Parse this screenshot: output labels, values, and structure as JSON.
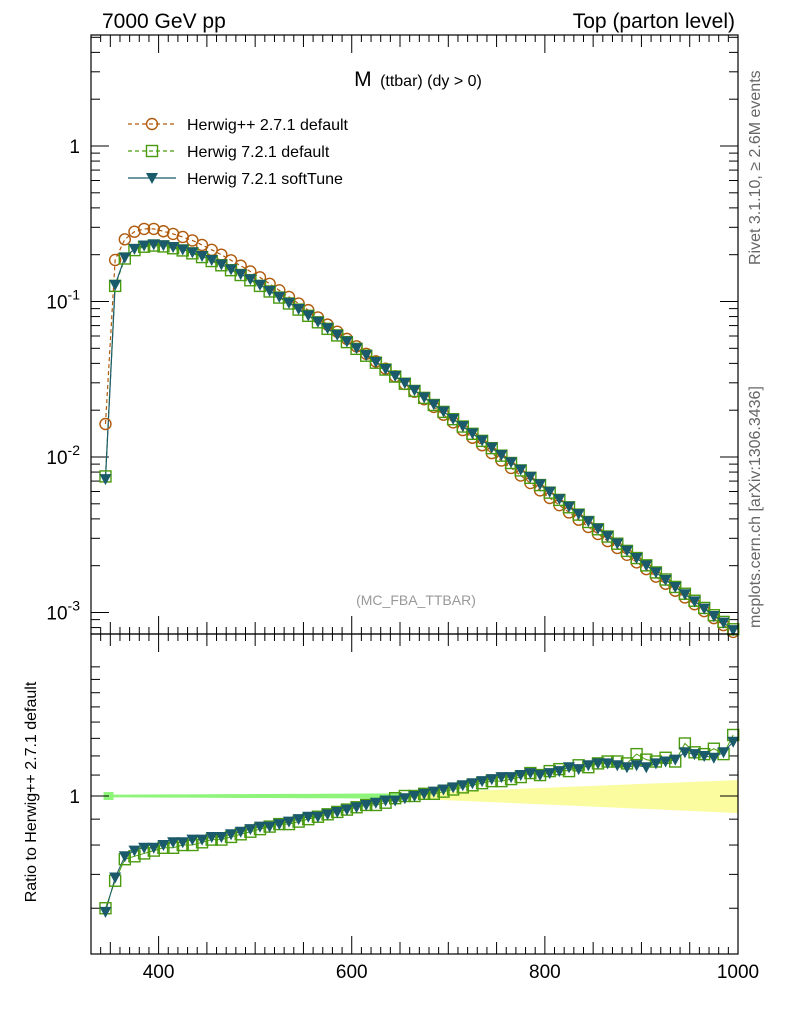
{
  "header": {
    "left": "7000 GeV pp",
    "right": "Top (parton level)"
  },
  "side_texts": {
    "rivet": "Rivet 3.1.10, ≥ 2.6M events",
    "mcplots": "mcplots.cern.ch [arXiv:1306.3436]"
  },
  "plot_title": {
    "main": "M",
    "sub": "(ttbar) (dy > 0)"
  },
  "analysis_label": "(MC_FBA_TTBAR)",
  "ratio_ylabel": "Ratio to Herwig++ 2.7.1 default",
  "colors": {
    "herwigpp": "#b05a0c",
    "herwig721": "#4a9a0e",
    "softtune": "#1a5a6a",
    "band_green": "#8ef57a",
    "band_yellow": "#fbfca0"
  },
  "chart_data": [
    {
      "type": "line",
      "title": "M (ttbar) (dy > 0)",
      "xlim": [
        330,
        1000
      ],
      "ylim": [
        0.0007,
        5
      ],
      "yscale": "log",
      "yticks": [
        "10^-3",
        "10^-2",
        "10^-1",
        "1"
      ],
      "legend_position": "top-left",
      "x": [
        345,
        355,
        365,
        375,
        385,
        395,
        405,
        415,
        425,
        435,
        445,
        455,
        465,
        475,
        485,
        495,
        505,
        515,
        525,
        535,
        545,
        555,
        565,
        575,
        585,
        595,
        605,
        615,
        625,
        635,
        645,
        655,
        665,
        675,
        685,
        695,
        705,
        715,
        725,
        735,
        745,
        755,
        765,
        775,
        785,
        795,
        805,
        815,
        825,
        835,
        845,
        855,
        865,
        875,
        885,
        895,
        905,
        915,
        925,
        935,
        945,
        955,
        965,
        975,
        985,
        995
      ],
      "series": [
        {
          "name": "Herwig++ 2.7.1 default",
          "marker": "open-circle",
          "line": "dashed",
          "color": "#b05a0c",
          "values": [
            0.0163,
            0.185,
            0.251,
            0.281,
            0.293,
            0.293,
            0.283,
            0.272,
            0.26,
            0.247,
            0.231,
            0.215,
            0.2,
            0.184,
            0.17,
            0.156,
            0.143,
            0.13,
            0.118,
            0.107,
            0.097,
            0.088,
            0.079,
            0.071,
            0.064,
            0.0575,
            0.0515,
            0.0461,
            0.0412,
            0.037,
            0.033,
            0.0295,
            0.0263,
            0.0235,
            0.021,
            0.0187,
            0.0167,
            0.0149,
            0.0133,
            0.0119,
            0.0106,
            0.0095,
            0.0085,
            0.0076,
            0.0068,
            0.0061,
            0.00545,
            0.0049,
            0.0044,
            0.00395,
            0.00355,
            0.0032,
            0.00288,
            0.0026,
            0.00235,
            0.0021,
            0.0019,
            0.0017,
            0.00153,
            0.00138,
            0.00125,
            0.00113,
            0.00102,
            0.00092,
            0.00083,
            0.00075
          ]
        },
        {
          "name": "Herwig 7.2.1 default",
          "marker": "open-square",
          "line": "dashed",
          "color": "#4a9a0e",
          "values": [
            0.0075,
            0.126,
            0.189,
            0.214,
            0.225,
            0.229,
            0.226,
            0.22,
            0.213,
            0.204,
            0.193,
            0.182,
            0.171,
            0.159,
            0.148,
            0.137,
            0.126,
            0.116,
            0.106,
            0.0971,
            0.0887,
            0.0809,
            0.0735,
            0.0667,
            0.0605,
            0.0548,
            0.0496,
            0.0448,
            0.0404,
            0.0365,
            0.0329,
            0.0296,
            0.0266,
            0.024,
            0.0216,
            0.0195,
            0.0175,
            0.0157,
            0.0141,
            0.0127,
            0.0114,
            0.0102,
            0.00915,
            0.0082,
            0.00735,
            0.0066,
            0.0059,
            0.0053,
            0.00475,
            0.00426,
            0.00382,
            0.00343,
            0.00308,
            0.00277,
            0.00249,
            0.00224,
            0.00201,
            0.00181,
            0.00163,
            0.00146,
            0.00132,
            0.00119,
            0.00107,
            0.00096,
            0.00087,
            0.00078
          ]
        },
        {
          "name": "Herwig 7.2.1 softTune",
          "marker": "filled-triangle-down",
          "line": "solid",
          "color": "#1a5a6a",
          "values": [
            0.0072,
            0.128,
            0.192,
            0.218,
            0.229,
            0.233,
            0.23,
            0.224,
            0.216,
            0.207,
            0.196,
            0.185,
            0.173,
            0.161,
            0.15,
            0.139,
            0.128,
            0.117,
            0.107,
            0.098,
            0.0895,
            0.0815,
            0.0741,
            0.0673,
            0.061,
            0.0553,
            0.05,
            0.0452,
            0.0408,
            0.0368,
            0.0332,
            0.0299,
            0.0269,
            0.0242,
            0.0218,
            0.0196,
            0.0176,
            0.0158,
            0.0142,
            0.0128,
            0.0115,
            0.0103,
            0.00925,
            0.0083,
            0.00745,
            0.00668,
            0.00598,
            0.00536,
            0.0048,
            0.0043,
            0.00386,
            0.00346,
            0.0031,
            0.00278,
            0.0025,
            0.00224,
            0.00201,
            0.00181,
            0.00162,
            0.00146,
            0.00131,
            0.00118,
            0.00106,
            0.00095,
            0.00086,
            0.00077
          ]
        }
      ]
    },
    {
      "type": "line",
      "ylabel": "Ratio to Herwig++ 2.7.1 default",
      "xlim": [
        330,
        1000
      ],
      "ylim": [
        0.55,
        1.9
      ],
      "yscale": "log",
      "xticks": [
        400,
        600,
        800,
        1000
      ],
      "yticks": [
        1
      ],
      "x": [
        345,
        355,
        365,
        375,
        385,
        395,
        405,
        415,
        425,
        435,
        445,
        455,
        465,
        475,
        485,
        495,
        505,
        515,
        525,
        535,
        545,
        555,
        565,
        575,
        585,
        595,
        605,
        615,
        625,
        635,
        645,
        655,
        665,
        675,
        685,
        695,
        705,
        715,
        725,
        735,
        745,
        755,
        765,
        775,
        785,
        795,
        805,
        815,
        825,
        835,
        845,
        855,
        865,
        875,
        885,
        895,
        905,
        915,
        925,
        935,
        945,
        955,
        965,
        975,
        985,
        995
      ],
      "series": [
        {
          "name": "Herwig 7.2.1 default",
          "marker": "open-square",
          "color": "#4a9a0e",
          "values": [
            0.6,
            0.68,
            0.75,
            0.76,
            0.77,
            0.78,
            0.79,
            0.79,
            0.8,
            0.8,
            0.81,
            0.82,
            0.82,
            0.83,
            0.84,
            0.85,
            0.86,
            0.87,
            0.88,
            0.88,
            0.89,
            0.9,
            0.91,
            0.92,
            0.93,
            0.94,
            0.95,
            0.96,
            0.96,
            0.97,
            0.99,
            1.0,
            1.0,
            1.01,
            1.01,
            1.02,
            1.03,
            1.04,
            1.05,
            1.06,
            1.07,
            1.07,
            1.08,
            1.09,
            1.11,
            1.1,
            1.12,
            1.13,
            1.12,
            1.15,
            1.14,
            1.16,
            1.17,
            1.17,
            1.16,
            1.21,
            1.18,
            1.17,
            1.19,
            1.17,
            1.27,
            1.22,
            1.21,
            1.24,
            1.21,
            1.32
          ]
        },
        {
          "name": "Herwig 7.2.1 softTune",
          "marker": "filled-triangle-down",
          "color": "#1a5a6a",
          "values": [
            0.59,
            0.69,
            0.76,
            0.78,
            0.79,
            0.79,
            0.8,
            0.81,
            0.81,
            0.82,
            0.82,
            0.83,
            0.83,
            0.84,
            0.85,
            0.86,
            0.87,
            0.87,
            0.88,
            0.89,
            0.9,
            0.91,
            0.91,
            0.92,
            0.93,
            0.94,
            0.95,
            0.96,
            0.97,
            0.98,
            0.98,
            0.99,
            1.0,
            1.01,
            1.02,
            1.03,
            1.04,
            1.05,
            1.06,
            1.07,
            1.08,
            1.09,
            1.09,
            1.1,
            1.11,
            1.1,
            1.11,
            1.12,
            1.14,
            1.13,
            1.15,
            1.16,
            1.16,
            1.15,
            1.14,
            1.15,
            1.14,
            1.16,
            1.17,
            1.18,
            1.22,
            1.21,
            1.2,
            1.19,
            1.22,
            1.28
          ]
        }
      ],
      "bands": [
        {
          "name": "Herwig++ 2.7.1 default stat. (low range)",
          "color": "#8ef57a",
          "x_range": [
            345,
            760
          ],
          "half_width": [
            0.006,
            0.014
          ]
        },
        {
          "name": "Herwig++ 2.7.1 default stat. (high range)",
          "color": "#fbfca0",
          "x_range": [
            660,
            1000
          ],
          "half_width": [
            0.012,
            0.075
          ]
        }
      ]
    }
  ]
}
